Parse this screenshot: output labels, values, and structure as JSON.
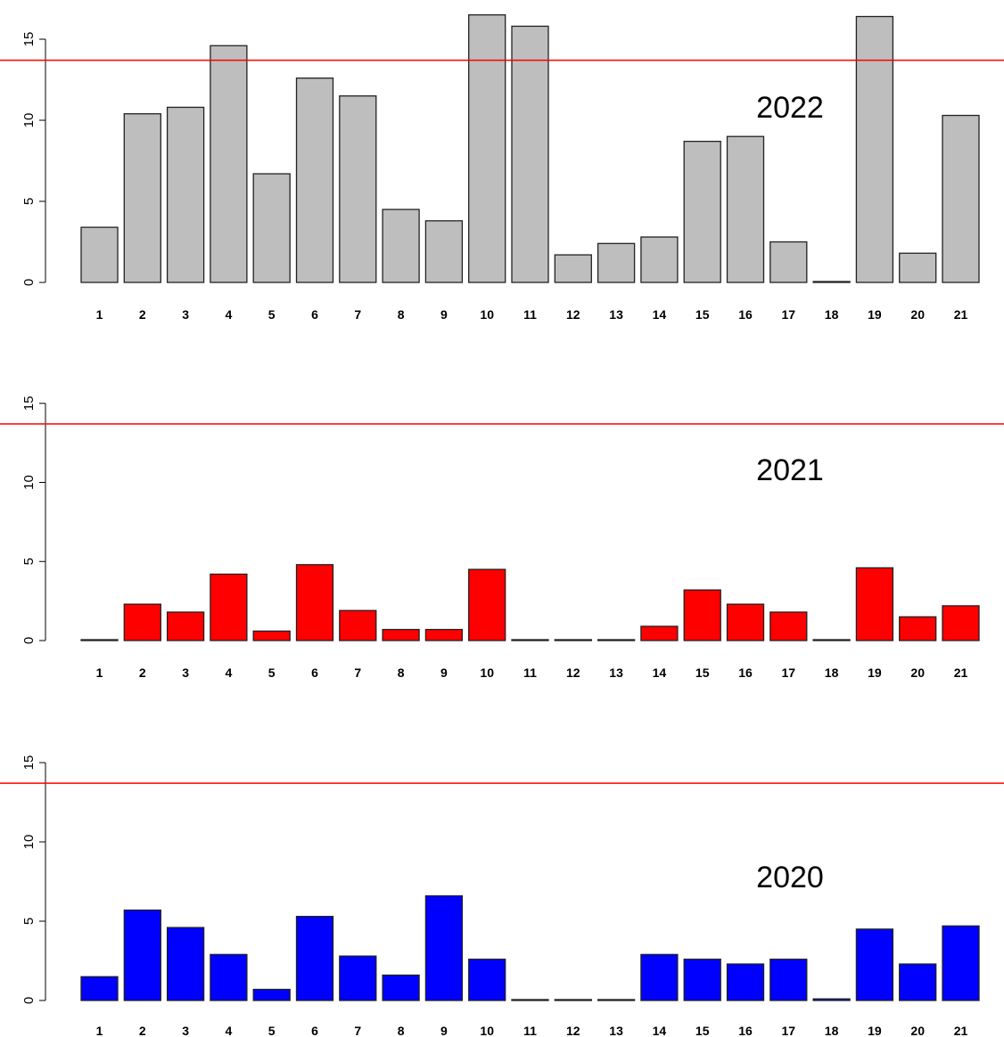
{
  "chart_data": [
    {
      "type": "bar",
      "title": "2022",
      "categories": [
        "1",
        "2",
        "3",
        "4",
        "5",
        "6",
        "7",
        "8",
        "9",
        "10",
        "11",
        "12",
        "13",
        "14",
        "15",
        "16",
        "17",
        "18",
        "19",
        "20",
        "21"
      ],
      "values": [
        3.4,
        10.4,
        10.8,
        14.6,
        6.7,
        12.6,
        11.5,
        4.5,
        3.8,
        16.5,
        15.8,
        1.7,
        2.4,
        2.8,
        8.7,
        9.0,
        2.5,
        0.05,
        16.4,
        1.8,
        10.3
      ],
      "bar_color": "#bebebe",
      "reference_line": 13.7,
      "reference_line_color": "#ff0000",
      "ylim": [
        0,
        16.5
      ],
      "yticks": [
        0,
        5,
        10,
        15
      ],
      "grid": false
    },
    {
      "type": "bar",
      "title": "2021",
      "categories": [
        "1",
        "2",
        "3",
        "4",
        "5",
        "6",
        "7",
        "8",
        "9",
        "10",
        "11",
        "12",
        "13",
        "14",
        "15",
        "16",
        "17",
        "18",
        "19",
        "20",
        "21"
      ],
      "values": [
        0.05,
        2.3,
        1.8,
        4.2,
        0.6,
        4.8,
        1.9,
        0.7,
        0.7,
        4.5,
        0.05,
        0.05,
        0.05,
        0.9,
        3.2,
        2.3,
        1.8,
        0.05,
        4.6,
        1.5,
        2.2
      ],
      "bar_color": "#ff0000",
      "reference_line": 13.7,
      "reference_line_color": "#ff0000",
      "ylim": [
        0,
        15
      ],
      "yticks": [
        0,
        5,
        10,
        15
      ],
      "grid": false
    },
    {
      "type": "bar",
      "title": "2020",
      "categories": [
        "1",
        "2",
        "3",
        "4",
        "5",
        "6",
        "7",
        "8",
        "9",
        "10",
        "11",
        "12",
        "13",
        "14",
        "15",
        "16",
        "17",
        "18",
        "19",
        "20",
        "21"
      ],
      "values": [
        1.5,
        5.7,
        4.6,
        2.9,
        0.7,
        5.3,
        2.8,
        1.6,
        6.6,
        2.6,
        0.05,
        0.05,
        0.05,
        2.9,
        2.6,
        2.3,
        2.6,
        0.1,
        4.5,
        2.3,
        4.7
      ],
      "bar_color": "#0000ff",
      "reference_line": 13.7,
      "reference_line_color": "#ff0000",
      "ylim": [
        0,
        15
      ],
      "yticks": [
        0,
        5,
        10,
        15
      ],
      "grid": false
    }
  ]
}
